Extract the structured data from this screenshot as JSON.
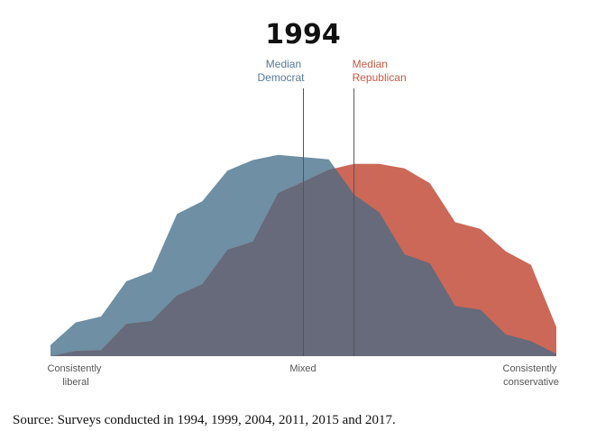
{
  "chart_data": {
    "type": "area",
    "title": "1994",
    "x": [
      -10,
      -9,
      -8,
      -7,
      -6,
      -5,
      -4,
      -3,
      -2,
      -1,
      0,
      1,
      2,
      3,
      4,
      5,
      6,
      7,
      8,
      9,
      10
    ],
    "series": [
      {
        "name": "Democrats",
        "color": "#6e8fa4",
        "values": [
          1.5,
          4.5,
          5.3,
          10.0,
          11.3,
          19.0,
          20.7,
          24.8,
          26.2,
          26.9,
          26.6,
          26.3,
          21.6,
          19.2,
          13.6,
          12.4,
          6.7,
          6.2,
          2.9,
          2.0,
          0.3
        ]
      },
      {
        "name": "Republicans",
        "color": "#cb6858",
        "values": [
          0.0,
          0.7,
          0.8,
          4.3,
          4.7,
          8.1,
          9.6,
          14.2,
          15.3,
          21.8,
          23.3,
          24.9,
          25.7,
          25.7,
          25.1,
          23.1,
          17.9,
          17.0,
          14.0,
          12.2,
          3.9
        ]
      }
    ],
    "overlap_color": "#666a7a",
    "ylim": [
      0,
      30
    ],
    "medians": [
      {
        "name": "Democrat",
        "label_line1": "Median",
        "label_line2": "Democrat",
        "x": 0.0,
        "color": "#537a96"
      },
      {
        "name": "Republican",
        "label_line1": "Median",
        "label_line2": "Republican",
        "x": 2.0,
        "color": "#c65a44"
      }
    ],
    "axis_labels": {
      "left_line1": "Consistently",
      "left_line2": "liberal",
      "center": "Mixed",
      "right_line1": "Consistently",
      "right_line2": "conservative"
    }
  },
  "source": "Source: Surveys conducted in 1994, 1999, 2004, 2011, 2015 and 2017."
}
